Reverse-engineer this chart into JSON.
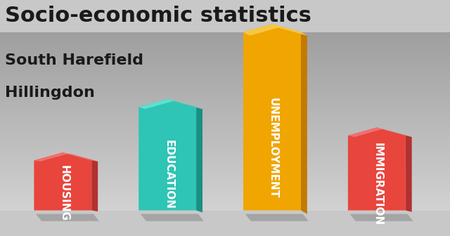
{
  "title": "Socio-economic statistics",
  "subtitle1": "South Harefield",
  "subtitle2": "Hillingdon",
  "categories": [
    "HOUSING",
    "EDUCATION",
    "UNEMPLOYMENT",
    "IMMIGRATION"
  ],
  "values": [
    0.28,
    0.58,
    1.0,
    0.42
  ],
  "bar_colors": [
    "#e8453c",
    "#2ec4b6",
    "#f0a500",
    "#e8453c"
  ],
  "bar_colors_dark": [
    "#b33030",
    "#1a8f85",
    "#c47a00",
    "#b33030"
  ],
  "bar_colors_top": [
    "#f07070",
    "#5de0d0",
    "#f5c842",
    "#f07070"
  ],
  "background_color_top": "#d0d0d0",
  "background_color_bottom": "#a0a0a0",
  "title_fontsize": 22,
  "subtitle_fontsize": 16,
  "label_fontsize": 11,
  "bar_width": 0.55,
  "bar_spacing": 1.0,
  "figsize": [
    6.4,
    3.36
  ],
  "dpi": 100
}
